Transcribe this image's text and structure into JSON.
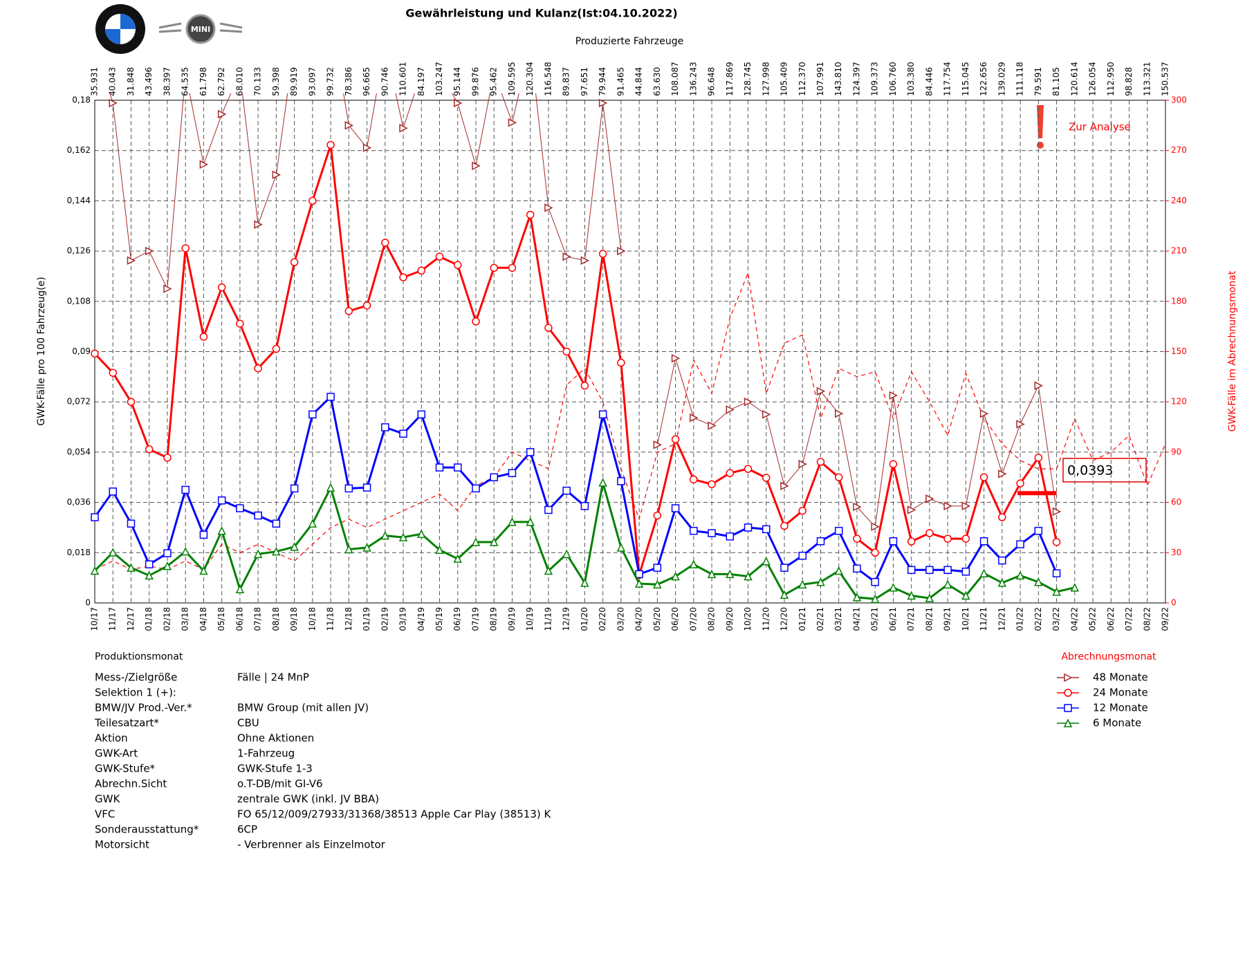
{
  "chart_data": {
    "type": "line",
    "title": "Gewährleistung und Kulanz(Ist:04.10.2022)",
    "subtitle": "Produzierte Fahrzeuge",
    "ylabel": "GWK-Fälle pro 100 Fahrzeug(e)",
    "y2label": "GWK-Fälle im Abrechnungsmonat",
    "xlabel": "Produktionsmonat",
    "categories": [
      "10/17",
      "11/17",
      "12/17",
      "01/18",
      "02/18",
      "03/18",
      "04/18",
      "05/18",
      "06/18",
      "07/18",
      "08/18",
      "09/18",
      "10/18",
      "11/18",
      "12/18",
      "01/19",
      "02/19",
      "03/19",
      "04/19",
      "05/19",
      "06/19",
      "07/19",
      "08/19",
      "09/19",
      "10/19",
      "11/19",
      "12/19",
      "01/20",
      "02/20",
      "03/20",
      "04/20",
      "05/20",
      "06/20",
      "07/20",
      "08/20",
      "09/20",
      "10/20",
      "11/20",
      "12/20",
      "01/21",
      "02/21",
      "03/21",
      "04/21",
      "05/21",
      "06/21",
      "07/21",
      "08/21",
      "09/21",
      "10/21",
      "11/21",
      "12/21",
      "01/22",
      "02/22",
      "03/22",
      "04/22",
      "05/22",
      "06/22",
      "07/22",
      "08/22",
      "09/22"
    ],
    "produced": [
      "35.931",
      "40.043",
      "31.848",
      "43.496",
      "38.397",
      "64.535",
      "61.798",
      "62.792",
      "68.010",
      "70.133",
      "59.398",
      "89.919",
      "93.097",
      "99.732",
      "78.386",
      "96.665",
      "90.746",
      "110.601",
      "84.197",
      "103.247",
      "95.144",
      "99.876",
      "95.462",
      "109.595",
      "120.304",
      "116.548",
      "89.837",
      "97.651",
      "79.944",
      "91.465",
      "44.844",
      "63.630",
      "108.087",
      "136.243",
      "96.648",
      "117.869",
      "128.745",
      "127.998",
      "105.409",
      "112.370",
      "107.991",
      "143.810",
      "124.397",
      "109.373",
      "106.760",
      "103.380",
      "84.446",
      "117.754",
      "115.045",
      "122.656",
      "139.029",
      "111.118",
      "79.591",
      "81.105",
      "120.614",
      "126.054",
      "112.950",
      "98.828",
      "113.321",
      "150.537"
    ],
    "ylim": [
      0,
      0.18
    ],
    "yticks": [
      0,
      {
        "value": 0.018,
        "label": "0,018"
      },
      {
        "value": 0.036,
        "label": "0,036"
      },
      {
        "value": 0.054,
        "label": "0,054"
      },
      {
        "value": 0.072,
        "label": "0,072"
      },
      {
        "value": 0.09,
        "label": "0,09"
      },
      {
        "value": 0.108,
        "label": "0,108"
      },
      {
        "value": 0.126,
        "label": "0,126"
      },
      {
        "value": 0.144,
        "label": "0,144"
      },
      {
        "value": 0.162,
        "label": "0,162"
      },
      {
        "value": 0.18,
        "label": "0,18"
      }
    ],
    "y2lim": [
      0,
      300
    ],
    "y2ticks": [
      0,
      30,
      60,
      90,
      120,
      150,
      180,
      210,
      240,
      270,
      300
    ],
    "grid": true,
    "legend_title": "Abrechnungsmonat",
    "series": [
      {
        "name": "48 Monate",
        "color": "#a52a2a",
        "marker": "triangle-right",
        "values": [
          0.2,
          0.179,
          0.1226,
          0.126,
          0.1125,
          0.19,
          0.157,
          0.175,
          0.19,
          0.1355,
          0.1533,
          0.2,
          0.2,
          0.21,
          0.171,
          0.163,
          0.2,
          0.17,
          0.19,
          0.19,
          0.179,
          0.1565,
          0.19,
          0.172,
          0.2,
          0.1415,
          0.124,
          0.1226,
          0.179,
          0.126,
          null,
          0.0566,
          0.0876,
          0.0663,
          0.0635,
          0.0692,
          0.072,
          0.0675,
          0.0419,
          0.0497,
          0.0758,
          0.0678,
          0.0344,
          0.0273,
          0.0743,
          0.0333,
          0.0373,
          0.0347,
          0.0347,
          0.0678,
          0.0462,
          0.064,
          0.0778,
          0.0327,
          null,
          null,
          null,
          null,
          null,
          null
        ]
      },
      {
        "name": "24 Monate",
        "color": "#ff0000",
        "marker": "circle",
        "values": [
          0.0893,
          0.0824,
          0.072,
          0.055,
          0.052,
          0.127,
          0.0953,
          0.113,
          0.1,
          0.084,
          0.091,
          0.122,
          0.144,
          0.164,
          0.1045,
          0.1065,
          0.129,
          0.1166,
          0.119,
          0.124,
          0.121,
          0.1008,
          0.12,
          0.12,
          0.139,
          0.0985,
          0.09,
          0.0778,
          0.125,
          0.086,
          0.01,
          0.0313,
          0.0586,
          0.0442,
          0.0425,
          0.0465,
          0.048,
          0.0448,
          0.0276,
          0.033,
          0.0505,
          0.045,
          0.023,
          0.018,
          0.0497,
          0.022,
          0.025,
          0.023,
          0.023,
          0.045,
          0.0307,
          0.0428,
          0.052,
          0.0218,
          null,
          null,
          null,
          null,
          null,
          null
        ]
      },
      {
        "name": "12 Monate",
        "color": "#0000ff",
        "marker": "square",
        "values": [
          0.0307,
          0.0399,
          0.0284,
          0.0138,
          0.0178,
          0.0405,
          0.0244,
          0.0367,
          0.0339,
          0.0313,
          0.0284,
          0.041,
          0.0675,
          0.0738,
          0.041,
          0.0413,
          0.0629,
          0.0606,
          0.0675,
          0.0485,
          0.0485,
          0.041,
          0.045,
          0.0465,
          0.054,
          0.0333,
          0.0402,
          0.0347,
          0.0675,
          0.0436,
          0.0103,
          0.0126,
          0.0339,
          0.0258,
          0.025,
          0.0238,
          0.027,
          0.0264,
          0.0126,
          0.0169,
          0.0221,
          0.0258,
          0.0123,
          0.0075,
          0.0221,
          0.0118,
          0.0118,
          0.0118,
          0.0112,
          0.0221,
          0.0152,
          0.021,
          0.0258,
          0.0106,
          null,
          null,
          null,
          null,
          null,
          null
        ]
      },
      {
        "name": "6 Monate",
        "color": "#008000",
        "marker": "triangle-up",
        "values": [
          0.0115,
          0.0181,
          0.0126,
          0.0098,
          0.0132,
          0.0184,
          0.0115,
          0.0258,
          0.0049,
          0.0175,
          0.0184,
          0.0201,
          0.0284,
          0.0413,
          0.0192,
          0.0198,
          0.0241,
          0.0235,
          0.0247,
          0.019,
          0.0158,
          0.0218,
          0.0218,
          0.029,
          0.029,
          0.0115,
          0.0175,
          0.0072,
          0.0431,
          0.0198,
          0.0069,
          0.0066,
          0.0095,
          0.0138,
          0.0103,
          0.0103,
          0.0095,
          0.0149,
          0.0029,
          0.0066,
          0.0075,
          0.0115,
          0.002,
          0.0014,
          0.0055,
          0.0026,
          0.0017,
          0.0066,
          0.0026,
          0.0106,
          0.0072,
          0.0098,
          0.0075,
          0.004,
          0.0055,
          null,
          null,
          null,
          null,
          null
        ]
      }
    ],
    "monthly_cases": {
      "color": "#ff0000",
      "axis": "y2",
      "dashed": true,
      "values": [
        20,
        25,
        20,
        22,
        20,
        25,
        20,
        35,
        30,
        35,
        30,
        25,
        35,
        45,
        50,
        45,
        50,
        55,
        60,
        65,
        55,
        70,
        75,
        90,
        85,
        80,
        130,
        140,
        120,
        80,
        50,
        90,
        95,
        145,
        125,
        170,
        197,
        125,
        155,
        160,
        110,
        140,
        135,
        138,
        110,
        138,
        120,
        100,
        137,
        110,
        95,
        85,
        80,
        80,
        110,
        85,
        90,
        100,
        70,
        95
      ]
    },
    "annotation": "Zur Analyse",
    "target": {
      "value": 0.0393,
      "label": "0,0393"
    }
  },
  "logos": {
    "mini": "MINI"
  },
  "info": {
    "rows": [
      [
        "Mess-/Zielgröße",
        "Fälle | 24 MnP"
      ],
      [
        "Selektion 1 (+):"
      ],
      [
        "BMW/JV Prod.-Ver.*",
        "BMW Group (mit allen JV)"
      ],
      [
        "Teilesatzart*",
        "CBU"
      ],
      [
        "Aktion",
        "Ohne Aktionen"
      ],
      [
        "GWK-Art",
        "1-Fahrzeug"
      ],
      [
        "GWK-Stufe*",
        "GWK-Stufe 1-3"
      ],
      [
        "Abrechn.Sicht",
        "o.T-DB/mit GI-V6"
      ],
      [
        "GWK",
        "zentrale GWK (inkl. JV BBA)"
      ],
      [
        "VFC",
        "FO 65/12/009/27933/31368/38513 Apple Car Play (38513) K"
      ],
      [
        "Sonderausstattung*",
        "6CP"
      ],
      [
        "Motorsicht",
        "- Verbrenner als Einzelmotor"
      ]
    ]
  }
}
